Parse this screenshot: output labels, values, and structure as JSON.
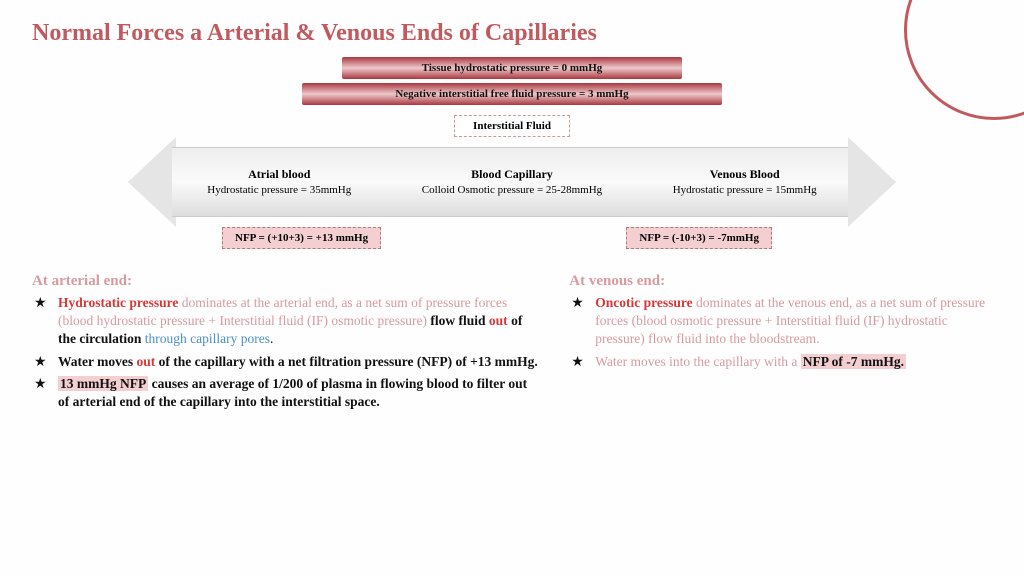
{
  "title": "Normal Forces a Arterial & Venous Ends of Capillaries",
  "diagram": {
    "top1": "Tissue hydrostatic pressure = 0 mmHg",
    "top2": "Negative interstitial free fluid pressure = 3 mmHg",
    "intFluid": "Interstitial Fluid",
    "col1h": "Atrial blood",
    "col1s": "Hydrostatic pressure = 35mmHg",
    "col2h": "Blood Capillary",
    "col2s": "Colloid Osmotic pressure = 25-28mmHg",
    "col3h": "Venous Blood",
    "col3s": "Hydrostatic pressure = 15mmHg",
    "nfpLeft": "NFP = (+10+3) = +13 mmHg",
    "nfpRight": "NFP = (-10+3) = -7mmHg"
  },
  "arterial": {
    "head": "At arterial end:",
    "b1a": "Hydrostatic pressure",
    "b1b": " dominates at the arterial end, as a net sum of pressure forces (blood hydrostatic pressure + Interstitial fluid (IF) osmotic pressure) ",
    "b1c": "flow fluid ",
    "b1d": "out",
    "b1e": " of the circulation ",
    "b1f": "through capillary pores",
    "b1g": ".",
    "b2a": " Water moves ",
    "b2b": "out",
    "b2c": " of the capillary with a net filtration pressure (NFP) of +13 mmHg.",
    "b3a": "13 mmHg NFP",
    "b3b": " causes an average of 1/200 of plasma in flowing blood to filter out of arterial end of the capillary into the interstitial space."
  },
  "venous": {
    "head": "At venous end:",
    "b1a": "Oncotic pressure",
    "b1b": " dominates at the venous end, as a net sum of pressure forces (blood osmotic pressure + Interstitial fluid (IF) hydrostatic pressure) flow fluid into the bloodstream.",
    "b2a": "Water moves into the capillary with a ",
    "b2b": "NFP of -7 mmHg."
  },
  "colors": {
    "accent": "#c15a5f",
    "pinkText": "#d79aa0",
    "redText": "#d63838",
    "blueText": "#4a90c2",
    "highlight": "#f4cfd1"
  }
}
